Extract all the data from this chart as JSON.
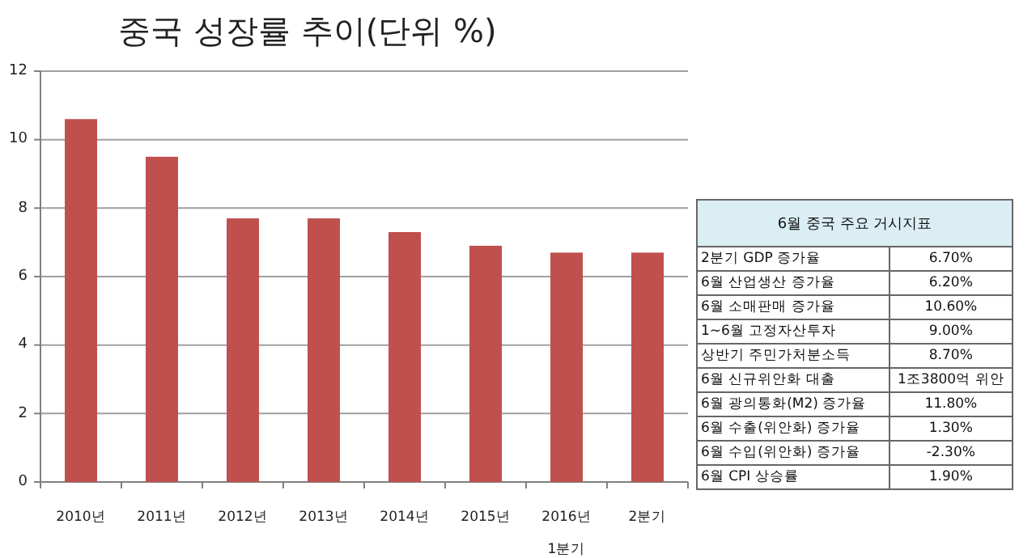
{
  "chart_data": [
    {
      "type": "bar",
      "title": "중국 성장률 추이(단위 %)",
      "categories": [
        "2010년",
        "2011년",
        "2012년",
        "2013년",
        "2014년",
        "2015년",
        "2016년 1분기",
        "2분기"
      ],
      "values": [
        10.6,
        9.5,
        7.7,
        7.7,
        7.3,
        6.9,
        6.7,
        6.7
      ],
      "color": "#c0504d",
      "ylim": [
        0,
        12
      ],
      "yticks": [
        0,
        2,
        4,
        6,
        8,
        10,
        12
      ],
      "grid": "y"
    },
    {
      "type": "other",
      "title": "6월 중국 주요 거시지표",
      "categories": [
        "2분기 GDP 증가율",
        "6월 산업생산 증가율",
        "6월 소매판매 증가율",
        "1~6월 고정자산투자",
        "상반기 주민가처분소득",
        "6월 신규위안화 대출",
        "6월 광의통화(M2) 증가율",
        "6월 수출(위안화) 증가율",
        "6월 수입(위안화) 증가율",
        "6월 CPI 상승률"
      ],
      "value_labels": [
        "6.70%",
        "6.20%",
        "10.60%",
        "9.00%",
        "8.70%",
        "1조3800억 위안",
        "11.80%",
        "1.30%",
        "-2.30%",
        "1.90%"
      ]
    }
  ]
}
